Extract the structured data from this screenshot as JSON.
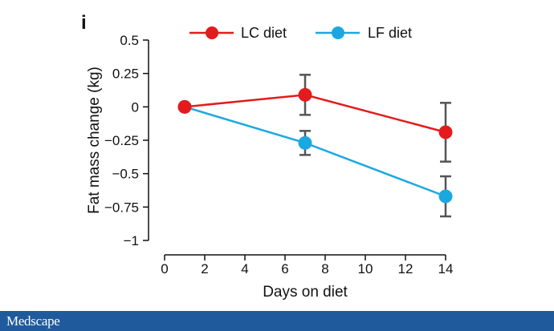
{
  "panel_label": "i",
  "footer": {
    "brand": "Medscape"
  },
  "colors": {
    "lc": "#e41a1c",
    "lf": "#1ba8e0",
    "error_bar": "#555555",
    "axis": "#111111",
    "footer_bg": "#1f5a9c"
  },
  "chart_data": {
    "type": "line",
    "xlabel": "Days on diet",
    "ylabel": "Fat mass change (kg)",
    "xlim": [
      0,
      14
    ],
    "ylim": [
      -1,
      0.5
    ],
    "x_ticks": [
      0,
      2,
      4,
      6,
      8,
      10,
      12,
      14
    ],
    "x_tick_labels": [
      "0",
      "2",
      "4",
      "6",
      "8",
      "10",
      "12",
      "14"
    ],
    "y_ticks": [
      0.5,
      0.25,
      0,
      -0.25,
      -0.5,
      -0.75,
      -1
    ],
    "y_tick_labels": [
      "0.5",
      "0.25",
      "0",
      "−0.25",
      "−0.5",
      "−0.75",
      "−1"
    ],
    "grid": false,
    "legend_position": "top",
    "series": [
      {
        "name": "LC diet",
        "color": "#e41a1c",
        "x": [
          1,
          7,
          14
        ],
        "y": [
          0,
          0.09,
          -0.19
        ],
        "error": [
          0,
          0.15,
          0.22
        ]
      },
      {
        "name": "LF diet",
        "color": "#1ba8e0",
        "x": [
          1,
          7,
          14
        ],
        "y": [
          0,
          -0.27,
          -0.67
        ],
        "error": [
          0,
          0.09,
          0.15
        ]
      }
    ]
  }
}
